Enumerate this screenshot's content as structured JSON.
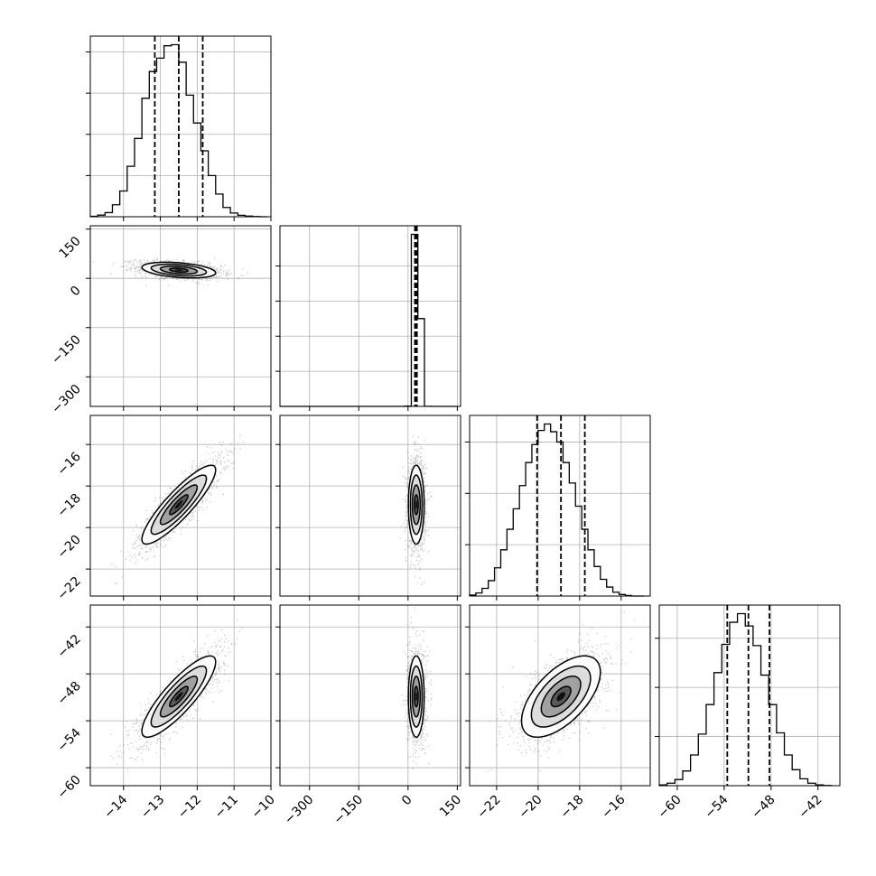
{
  "chart_data": {
    "type": "corner",
    "title": "",
    "grid": true,
    "parameters": [
      {
        "name": "",
        "range": [
          -14.9,
          -10.0
        ],
        "ticks": [
          -14,
          -13,
          -12,
          -11,
          -10
        ],
        "tick_labels": [
          "−14",
          "−13",
          "−12",
          "−11",
          "−10"
        ],
        "mean": -12.5,
        "sigma": 0.5,
        "quantiles": [
          -13.15,
          -12.5,
          -11.85
        ]
      },
      {
        "name": "",
        "range": [
          -390,
          160
        ],
        "ticks": [
          -300,
          -150,
          0,
          150
        ],
        "tick_labels": [
          "−300",
          "−150",
          "0",
          "150"
        ],
        "mean": 25,
        "sigma": 12,
        "quantiles": [
          21,
          24,
          27
        ]
      },
      {
        "name": "",
        "range": [
          -23.3,
          -14.6
        ],
        "ticks": [
          -22,
          -20,
          -18,
          -16
        ],
        "tick_labels": [
          "−22",
          "−20",
          "−18",
          "−16"
        ],
        "mean": -18.9,
        "sigma": 0.95,
        "quantiles": [
          -20.05,
          -18.9,
          -17.75
        ]
      },
      {
        "name": "",
        "range": [
          -62.3,
          -39.2
        ],
        "ticks": [
          -60,
          -54,
          -48,
          -42
        ],
        "tick_labels": [
          "−60",
          "−54",
          "−48",
          "−42"
        ],
        "mean": -50.9,
        "sigma": 2.6,
        "quantiles": [
          -53.6,
          -50.9,
          -48.2
        ]
      }
    ],
    "histograms": [
      {
        "param": 0,
        "bins": [
          -14.9,
          -14.7,
          -14.5,
          -14.3,
          -14.1,
          -13.9,
          -13.7,
          -13.5,
          -13.3,
          -13.1,
          -12.9,
          -12.7,
          -12.5,
          -12.3,
          -12.1,
          -11.9,
          -11.7,
          -11.5,
          -11.3,
          -11.1,
          -10.9,
          -10.7,
          -10.5,
          -10.3,
          -10.1
        ],
        "counts": [
          2,
          8,
          20,
          58,
          125,
          245,
          380,
          575,
          705,
          770,
          830,
          835,
          750,
          590,
          455,
          320,
          200,
          110,
          45,
          18,
          7,
          3,
          1,
          0
        ],
        "yticks": [
          200,
          400,
          600,
          800
        ]
      },
      {
        "param": 1,
        "bins": [
          -390,
          -370,
          -350,
          -330,
          -310,
          -290,
          -270,
          -250,
          -230,
          -210,
          -190,
          -170,
          -150,
          -130,
          -110,
          -90,
          -70,
          -50,
          -30,
          -10,
          10,
          30,
          50,
          70,
          90,
          110,
          130,
          150
        ],
        "counts": [
          0,
          0,
          0,
          0,
          0,
          0,
          0,
          0,
          0,
          0,
          0,
          0,
          0,
          0,
          0,
          0,
          0,
          0,
          0,
          10,
          4900,
          2500,
          3,
          0,
          0,
          0,
          0
        ],
        "yticks": [
          1000,
          2000,
          3000,
          4000
        ]
      },
      {
        "param": 2,
        "bins": [
          -23.3,
          -23.0,
          -22.7,
          -22.4,
          -22.1,
          -21.8,
          -21.5,
          -21.2,
          -20.9,
          -20.6,
          -20.3,
          -20.0,
          -19.7,
          -19.4,
          -19.1,
          -18.8,
          -18.5,
          -18.2,
          -17.9,
          -17.6,
          -17.3,
          -17.0,
          -16.7,
          -16.4,
          -16.1,
          -15.8,
          -15.5,
          -15.2,
          -14.9
        ],
        "counts": [
          4,
          12,
          30,
          60,
          110,
          180,
          260,
          340,
          430,
          520,
          590,
          645,
          670,
          640,
          600,
          520,
          440,
          350,
          260,
          180,
          115,
          65,
          35,
          15,
          6,
          2,
          0,
          0
        ],
        "yticks": [
          200,
          400,
          600
        ]
      },
      {
        "param": 3,
        "bins": [
          -62.3,
          -61.3,
          -60.3,
          -59.3,
          -58.3,
          -57.3,
          -56.3,
          -55.3,
          -54.3,
          -53.3,
          -52.3,
          -51.3,
          -50.3,
          -49.3,
          -48.3,
          -47.3,
          -46.3,
          -45.3,
          -44.3,
          -43.3,
          -42.3,
          -41.3,
          -40.3
        ],
        "counts": [
          3,
          10,
          25,
          60,
          125,
          210,
          330,
          460,
          575,
          665,
          700,
          650,
          570,
          450,
          330,
          215,
          125,
          65,
          28,
          10,
          3,
          1
        ],
        "yticks": [
          200,
          400,
          600
        ]
      }
    ],
    "scatter_panels": [
      {
        "x": 0,
        "y": 1,
        "rho": -0.35
      },
      {
        "x": 0,
        "y": 2,
        "rho": 0.88
      },
      {
        "x": 1,
        "y": 2,
        "rho": 0.0
      },
      {
        "x": 0,
        "y": 3,
        "rho": 0.85
      },
      {
        "x": 1,
        "y": 3,
        "rho": 0.0
      },
      {
        "x": 2,
        "y": 3,
        "rho": 0.6
      }
    ]
  },
  "colors": {
    "axes": "#000000",
    "grid": "#b0b0b0",
    "hist": "#000000",
    "quantile": "#000000",
    "scatter": "#000000",
    "density_low": "#ffffff",
    "density_high": "#000000"
  }
}
